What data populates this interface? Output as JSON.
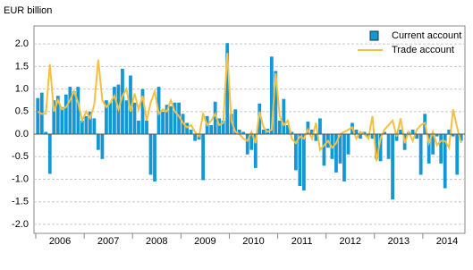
{
  "chart_data": {
    "type": "bar_line",
    "y_label": "EUR billion",
    "categories": [
      null,
      null,
      null,
      null,
      null,
      null,
      "2006",
      null,
      null,
      null,
      null,
      null,
      null,
      null,
      null,
      null,
      null,
      null,
      "2007",
      null,
      null,
      null,
      null,
      null,
      null,
      null,
      null,
      null,
      null,
      null,
      "2008",
      null,
      null,
      null,
      null,
      null,
      null,
      null,
      null,
      null,
      null,
      null,
      "2009",
      null,
      null,
      null,
      null,
      null,
      null,
      null,
      null,
      null,
      null,
      null,
      "2010",
      null,
      null,
      null,
      null,
      null,
      null,
      null,
      null,
      null,
      null,
      null,
      "2011",
      null,
      null,
      null,
      null,
      null,
      null,
      null,
      null,
      null,
      null,
      null,
      "2012",
      null,
      null,
      null,
      null,
      null,
      null,
      null,
      null,
      null,
      null,
      null,
      "2013",
      null,
      null,
      null,
      null,
      null,
      null,
      null,
      null,
      null,
      null,
      null,
      "2014",
      null,
      null,
      null
    ],
    "series": [
      {
        "name": "Current account",
        "kind": "bar",
        "color": "#1497d5",
        "values": [
          0.8,
          0.92,
          0.05,
          -0.88,
          0.75,
          0.85,
          0.6,
          0.88,
          1.05,
          0.95,
          1.05,
          0.3,
          0.4,
          0.5,
          0.35,
          -0.35,
          -0.55,
          0.75,
          0.7,
          1.05,
          1.1,
          1.45,
          0.75,
          1.3,
          0.7,
          0.3,
          1.0,
          0.3,
          -0.9,
          -1.05,
          1.05,
          0.5,
          0.65,
          0.62,
          0.7,
          0.7,
          0.45,
          0.25,
          0.1,
          -0.15,
          -0.12,
          -1.02,
          0.4,
          0.2,
          0.72,
          0.35,
          0.3,
          2.02,
          0.45,
          0.55,
          0.1,
          0.05,
          -0.45,
          -0.35,
          -0.75,
          0.68,
          0.1,
          0.12,
          1.72,
          1.4,
          0.3,
          0.78,
          0.2,
          0.05,
          -0.8,
          -1.15,
          -1.25,
          0.28,
          0.1,
          -0.15,
          0.35,
          -0.7,
          -0.3,
          -0.55,
          -0.85,
          -0.65,
          -1.05,
          -0.45,
          0.25,
          0.1,
          -0.1,
          0.05,
          -0.05,
          -0.1,
          -0.55,
          -0.6,
          0.05,
          -0.55,
          -1.45,
          -0.15,
          0.1,
          -0.35,
          0.05,
          0.1,
          -0.1,
          -0.9,
          0.45,
          -0.65,
          -0.45,
          -0.05,
          -0.65,
          -1.2,
          0.1,
          -0.05,
          -0.9,
          -0.15
        ]
      },
      {
        "name": "Trade account",
        "kind": "line",
        "color": "#f5c040",
        "values": [
          0.5,
          0.45,
          0.45,
          1.55,
          0.5,
          0.75,
          0.55,
          0.6,
          0.75,
          0.95,
          0.7,
          0.3,
          0.5,
          0.35,
          0.65,
          1.65,
          0.75,
          0.6,
          0.7,
          0.85,
          0.55,
          0.85,
          1.0,
          0.5,
          0.9,
          0.55,
          0.85,
          0.3,
          0.7,
          0.95,
          0.45,
          0.55,
          0.5,
          0.75,
          0.5,
          0.4,
          0.25,
          0.15,
          0.2,
          0.05,
          -0.05,
          0.45,
          0.2,
          0.3,
          0.45,
          0.2,
          0.25,
          1.8,
          0.3,
          0.05,
          0.0,
          -0.1,
          -0.15,
          0.05,
          -0.2,
          0.5,
          0.15,
          0.05,
          0.1,
          1.35,
          0.4,
          0.2,
          0.3,
          -0.1,
          -0.2,
          -0.05,
          -0.1,
          0.1,
          -0.1,
          0.25,
          -0.35,
          -0.25,
          -0.15,
          -0.3,
          -0.2,
          0.0,
          0.05,
          0.1,
          0.15,
          -0.1,
          0.05,
          0.0,
          -0.1,
          0.4,
          -0.6,
          -0.1,
          0.1,
          0.2,
          0.3,
          -0.05,
          0.35,
          -0.2,
          0.05,
          -0.15,
          0.1,
          0.2,
          0.25,
          -0.2,
          0.05,
          -0.25,
          -0.15,
          -0.15,
          -0.3,
          0.55,
          0.15,
          -0.2
        ]
      }
    ],
    "ylim": [
      -2.2,
      2.4
    ],
    "yticks": [
      {
        "value": -2,
        "label": "-2.0"
      },
      {
        "value": -1.5,
        "label": "-1.5"
      },
      {
        "value": -1,
        "label": "-1.0"
      },
      {
        "value": -0.5,
        "label": "-0.5"
      },
      {
        "value": 0,
        "label": "0.0"
      },
      {
        "value": 0.5,
        "label": "0.5"
      },
      {
        "value": 1,
        "label": "1.0"
      },
      {
        "value": 1.5,
        "label": "1.5"
      },
      {
        "value": 2,
        "label": "2.0"
      }
    ],
    "grid": true,
    "legend": "top-right"
  }
}
